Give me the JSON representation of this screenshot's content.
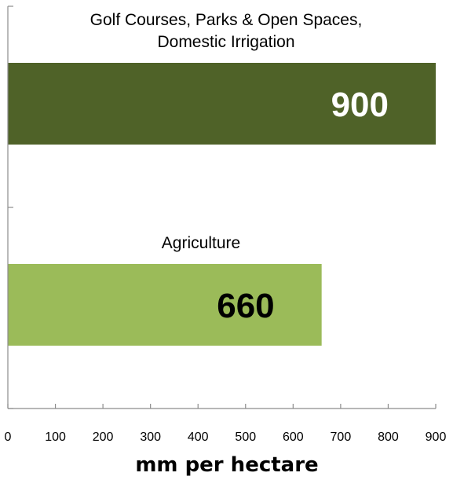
{
  "chart_data": {
    "type": "bar",
    "orientation": "horizontal",
    "categories": [
      [
        "Golf Courses, Parks & Open Spaces,",
        "Domestic Irrigation"
      ],
      [
        "Agriculture"
      ]
    ],
    "values": [
      900,
      660
    ],
    "data_labels": [
      "900",
      "660"
    ],
    "bar_colors": [
      "#4f6228",
      "#9bbb59"
    ],
    "data_label_colors": [
      "#ffffff",
      "#000000"
    ],
    "xlabel": "mm per hectare",
    "xlim": [
      0,
      900
    ],
    "xticks": [
      0,
      100,
      200,
      300,
      400,
      500,
      600,
      700,
      800,
      900
    ],
    "grid": false,
    "legend": "none"
  }
}
